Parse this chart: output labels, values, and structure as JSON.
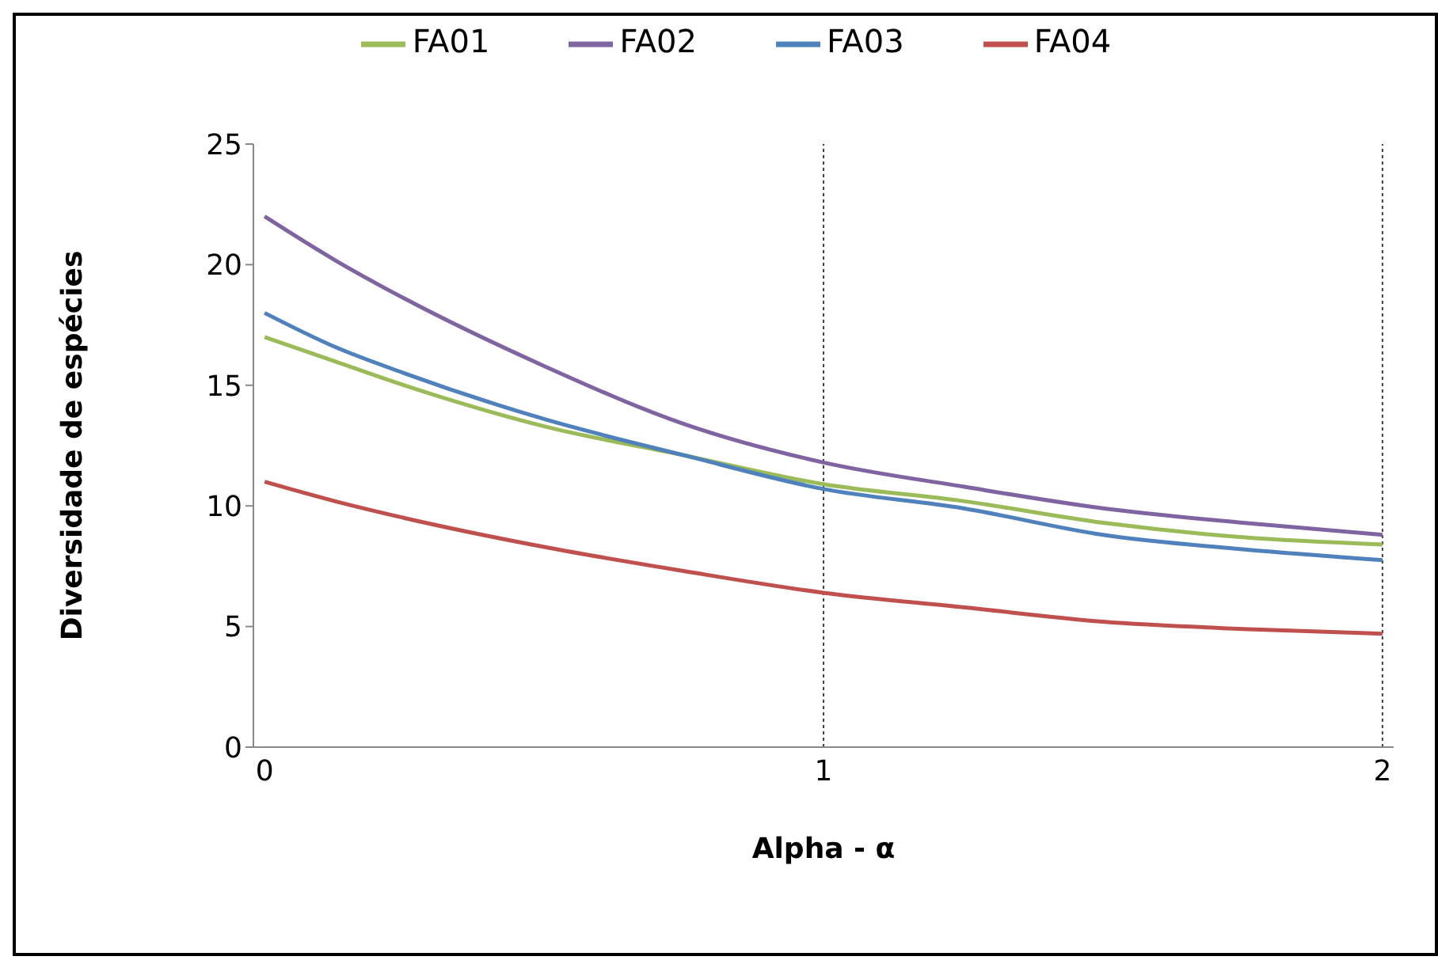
{
  "chart_data": {
    "type": "line",
    "xlabel": "Alpha - α",
    "ylabel": "Diversidade de espécies",
    "x": [
      0,
      0.125,
      0.25,
      0.5,
      0.75,
      1,
      1.25,
      1.5,
      1.75,
      2
    ],
    "series": [
      {
        "name": "FA01",
        "color": "#9bbb59",
        "values": [
          17,
          16.0,
          15.0,
          13.3,
          12.1,
          10.9,
          10.2,
          9.3,
          8.7,
          8.4
        ]
      },
      {
        "name": "FA02",
        "color": "#8064a2",
        "values": [
          22,
          20.2,
          18.6,
          15.8,
          13.4,
          11.8,
          10.8,
          9.9,
          9.3,
          8.8
        ]
      },
      {
        "name": "FA03",
        "color": "#4f81bd",
        "values": [
          18,
          16.6,
          15.5,
          13.6,
          12.1,
          10.7,
          9.9,
          8.8,
          8.2,
          7.75
        ]
      },
      {
        "name": "FA04",
        "color": "#c0504d",
        "values": [
          11,
          10.2,
          9.5,
          8.3,
          7.3,
          6.4,
          5.8,
          5.2,
          4.9,
          4.7
        ]
      }
    ],
    "xlim": [
      -0.02,
      2.02
    ],
    "xticks": [
      0,
      1,
      2
    ],
    "ylim": [
      0,
      25
    ],
    "yticks": [
      0,
      5,
      10,
      15,
      20,
      25
    ],
    "ref_lines": [
      {
        "axis": "x",
        "value": 1,
        "color": "#404040",
        "line_style": "dotted"
      },
      {
        "axis": "x",
        "value": 2,
        "color": "#404040",
        "line_style": "dotted"
      }
    ],
    "grid": false,
    "legend": "top",
    "marker": "none",
    "line_style": "solid"
  }
}
